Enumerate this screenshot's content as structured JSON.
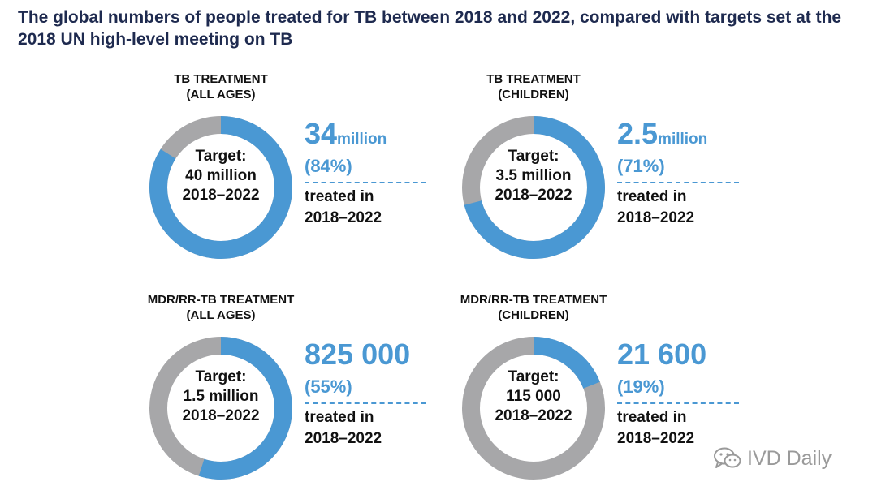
{
  "title": "The global numbers of people treated for TB between 2018 and 2022, compared with targets set at the 2018 UN high-level meeting on TB",
  "watermark": "IVD Daily",
  "colors": {
    "achieved": "#4a98d3",
    "remaining": "#a7a7a9",
    "title": "#1e2a4f"
  },
  "chart_data": [
    {
      "type": "pie",
      "heading": [
        "TB TREATMENT",
        "(ALL AGES)"
      ],
      "center": [
        "Target:",
        "40 million",
        "2018–2022"
      ],
      "value": "34",
      "unit": "million",
      "percent_label": "(84%)",
      "treated": [
        "treated in",
        "2018–2022"
      ],
      "achieved_fraction": 0.84
    },
    {
      "type": "pie",
      "heading": [
        "TB TREATMENT",
        "(CHILDREN)"
      ],
      "center": [
        "Target:",
        "3.5 million",
        "2018–2022"
      ],
      "value": "2.5",
      "unit": "million",
      "percent_label": "(71%)",
      "treated": [
        "treated in",
        "2018–2022"
      ],
      "achieved_fraction": 0.71
    },
    {
      "type": "pie",
      "heading": [
        "MDR/RR-TB TREATMENT",
        "(ALL AGES)"
      ],
      "center": [
        "Target:",
        "1.5 million",
        "2018–2022"
      ],
      "value": "825 000",
      "unit": "",
      "percent_label": "(55%)",
      "treated": [
        "treated in",
        "2018–2022"
      ],
      "achieved_fraction": 0.55
    },
    {
      "type": "pie",
      "heading": [
        "MDR/RR-TB TREATMENT",
        "(CHILDREN)"
      ],
      "center": [
        "Target:",
        "115 000",
        "2018–2022"
      ],
      "value": "21 600",
      "unit": "",
      "percent_label": "(19%)",
      "treated": [
        "treated in",
        "2018–2022"
      ],
      "achieved_fraction": 0.19
    }
  ]
}
